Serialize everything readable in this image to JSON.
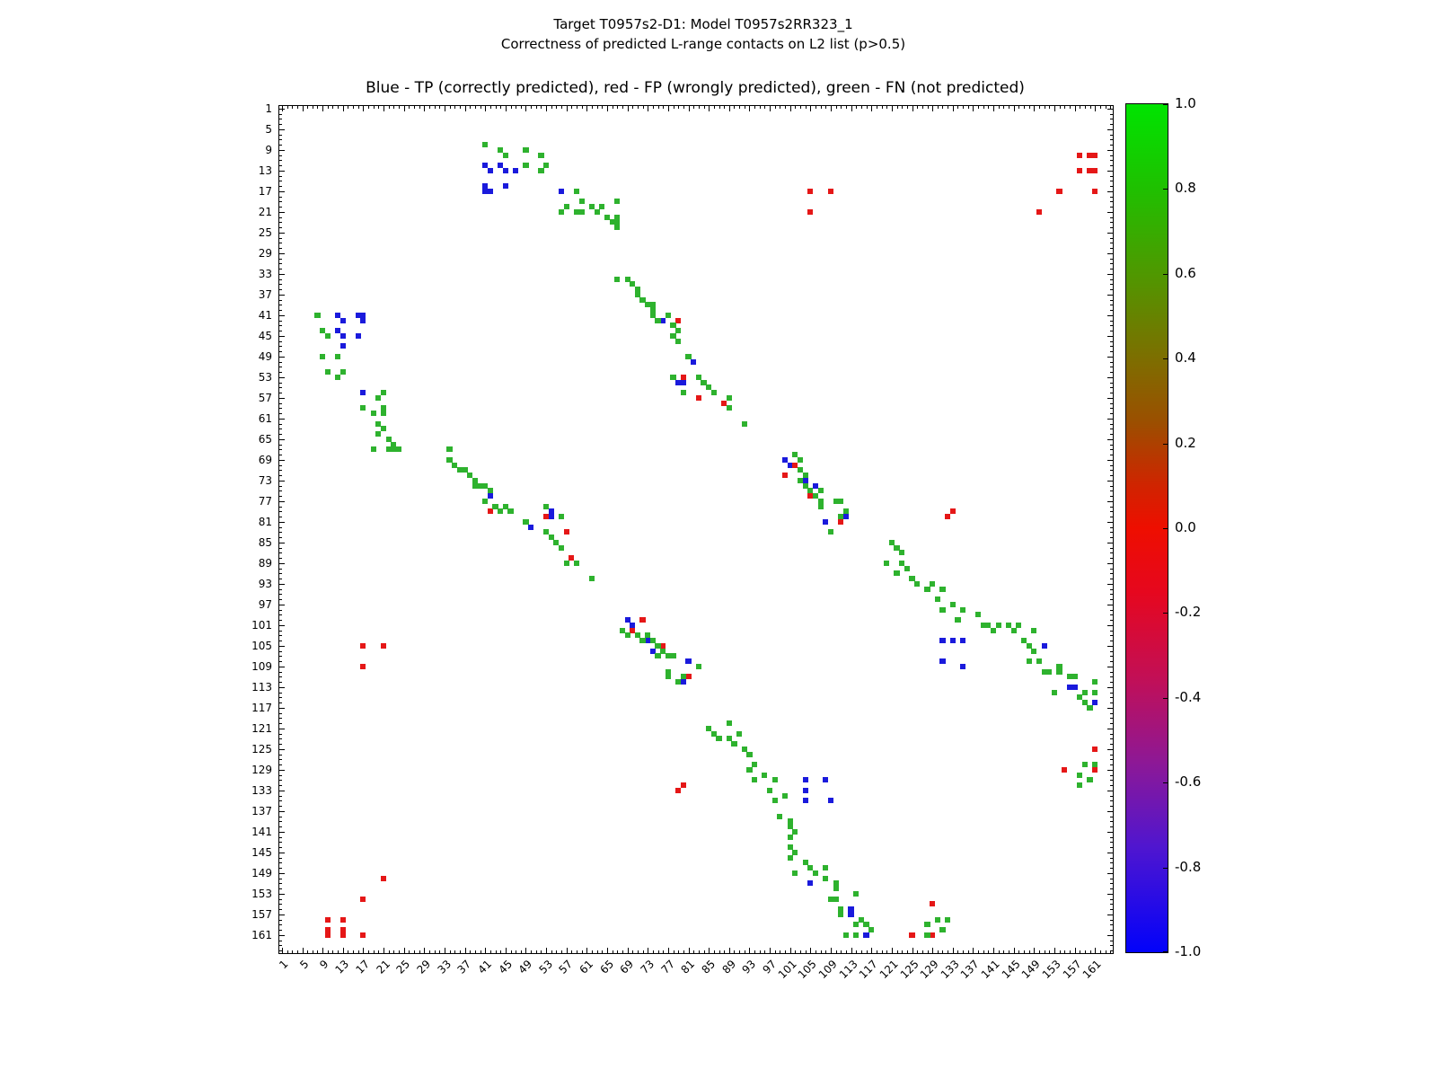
{
  "figure": {
    "suptitle_line1": "Target T0957s2-D1: Model T0957s2RR323_1",
    "suptitle_line2": "Correctness of predicted L-range contacts on L2 list (p>0.5)",
    "axes_title": "Blue - TP (correctly predicted), red - FP (wrongly predicted), green - FN (not predicted)"
  },
  "chart_data": {
    "type": "scatter",
    "title": "Blue - TP (correctly predicted), red - FP (wrongly predicted), green - FN (not predicted)",
    "xlabel": "",
    "ylabel": "",
    "n_residues": 164,
    "axis_range": [
      0.5,
      164.5
    ],
    "grid": false,
    "symmetric": true,
    "tick_labels": [
      1,
      5,
      9,
      13,
      17,
      21,
      25,
      29,
      33,
      37,
      41,
      45,
      49,
      53,
      57,
      61,
      65,
      69,
      73,
      77,
      81,
      85,
      89,
      93,
      97,
      101,
      105,
      109,
      113,
      117,
      121,
      125,
      129,
      133,
      137,
      141,
      145,
      149,
      153,
      157,
      161
    ],
    "legend": {
      "TP": "Blue - TP (correctly predicted)",
      "FP": "red - FP (wrongly predicted)",
      "FN": "green - FN (not predicted)"
    },
    "colors": {
      "TP": "#1a1adc",
      "FP": "#e51717",
      "FN": "#2eb22e"
    },
    "contacts": [
      [
        12,
        41,
        "TP"
      ],
      [
        13,
        42,
        "TP"
      ],
      [
        12,
        44,
        "TP"
      ],
      [
        13,
        45,
        "TP"
      ],
      [
        16,
        41,
        "TP"
      ],
      [
        17,
        41,
        "TP"
      ],
      [
        16,
        45,
        "TP"
      ],
      [
        17,
        42,
        "TP"
      ],
      [
        13,
        47,
        "TP"
      ],
      [
        17,
        56,
        "TP"
      ],
      [
        42,
        76,
        "TP"
      ],
      [
        50,
        82,
        "TP"
      ],
      [
        54,
        79,
        "TP"
      ],
      [
        54,
        80,
        "TP"
      ],
      [
        69,
        100,
        "TP"
      ],
      [
        70,
        101,
        "TP"
      ],
      [
        73,
        104,
        "TP"
      ],
      [
        74,
        106,
        "TP"
      ],
      [
        81,
        108,
        "TP"
      ],
      [
        80,
        112,
        "TP"
      ],
      [
        104,
        131,
        "TP"
      ],
      [
        104,
        133,
        "TP"
      ],
      [
        104,
        135,
        "TP"
      ],
      [
        108,
        131,
        "TP"
      ],
      [
        109,
        135,
        "TP"
      ],
      [
        105,
        151,
        "TP"
      ],
      [
        113,
        156,
        "TP"
      ],
      [
        113,
        157,
        "TP"
      ],
      [
        116,
        161,
        "TP"
      ],
      [
        17,
        105,
        "FP"
      ],
      [
        17,
        109,
        "FP"
      ],
      [
        21,
        105,
        "FP"
      ],
      [
        10,
        158,
        "FP"
      ],
      [
        10,
        160,
        "FP"
      ],
      [
        10,
        161,
        "FP"
      ],
      [
        13,
        158,
        "FP"
      ],
      [
        13,
        160,
        "FP"
      ],
      [
        13,
        161,
        "FP"
      ],
      [
        17,
        154,
        "FP"
      ],
      [
        17,
        161,
        "FP"
      ],
      [
        21,
        150,
        "FP"
      ],
      [
        42,
        79,
        "FP"
      ],
      [
        53,
        80,
        "FP"
      ],
      [
        57,
        83,
        "FP"
      ],
      [
        58,
        88,
        "FP"
      ],
      [
        70,
        102,
        "FP"
      ],
      [
        72,
        100,
        "FP"
      ],
      [
        76,
        105,
        "FP"
      ],
      [
        81,
        111,
        "FP"
      ],
      [
        79,
        133,
        "FP"
      ],
      [
        80,
        132,
        "FP"
      ],
      [
        125,
        161,
        "FP"
      ],
      [
        129,
        155,
        "FP"
      ],
      [
        129,
        161,
        "FP"
      ],
      [
        8,
        41,
        "FN"
      ],
      [
        9,
        44,
        "FN"
      ],
      [
        10,
        45,
        "FN"
      ],
      [
        9,
        49,
        "FN"
      ],
      [
        12,
        49,
        "FN"
      ],
      [
        10,
        52,
        "FN"
      ],
      [
        13,
        52,
        "FN"
      ],
      [
        12,
        53,
        "FN"
      ],
      [
        17,
        59,
        "FN"
      ],
      [
        19,
        60,
        "FN"
      ],
      [
        20,
        57,
        "FN"
      ],
      [
        21,
        56,
        "FN"
      ],
      [
        21,
        59,
        "FN"
      ],
      [
        21,
        60,
        "FN"
      ],
      [
        20,
        62,
        "FN"
      ],
      [
        21,
        63,
        "FN"
      ],
      [
        22,
        65,
        "FN"
      ],
      [
        23,
        66,
        "FN"
      ],
      [
        20,
        64,
        "FN"
      ],
      [
        19,
        67,
        "FN"
      ],
      [
        22,
        67,
        "FN"
      ],
      [
        23,
        67,
        "FN"
      ],
      [
        24,
        67,
        "FN"
      ],
      [
        34,
        67,
        "FN"
      ],
      [
        34,
        69,
        "FN"
      ],
      [
        35,
        70,
        "FN"
      ],
      [
        36,
        71,
        "FN"
      ],
      [
        37,
        71,
        "FN"
      ],
      [
        38,
        72,
        "FN"
      ],
      [
        39,
        73,
        "FN"
      ],
      [
        39,
        74,
        "FN"
      ],
      [
        40,
        74,
        "FN"
      ],
      [
        41,
        74,
        "FN"
      ],
      [
        42,
        75,
        "FN"
      ],
      [
        41,
        77,
        "FN"
      ],
      [
        43,
        78,
        "FN"
      ],
      [
        44,
        79,
        "FN"
      ],
      [
        45,
        78,
        "FN"
      ],
      [
        46,
        79,
        "FN"
      ],
      [
        49,
        81,
        "FN"
      ],
      [
        53,
        78,
        "FN"
      ],
      [
        56,
        80,
        "FN"
      ],
      [
        53,
        83,
        "FN"
      ],
      [
        54,
        84,
        "FN"
      ],
      [
        55,
        85,
        "FN"
      ],
      [
        56,
        86,
        "FN"
      ],
      [
        57,
        89,
        "FN"
      ],
      [
        59,
        89,
        "FN"
      ],
      [
        62,
        92,
        "FN"
      ],
      [
        68,
        102,
        "FN"
      ],
      [
        69,
        103,
        "FN"
      ],
      [
        71,
        103,
        "FN"
      ],
      [
        73,
        103,
        "FN"
      ],
      [
        72,
        104,
        "FN"
      ],
      [
        74,
        104,
        "FN"
      ],
      [
        75,
        105,
        "FN"
      ],
      [
        76,
        106,
        "FN"
      ],
      [
        75,
        107,
        "FN"
      ],
      [
        77,
        107,
        "FN"
      ],
      [
        78,
        107,
        "FN"
      ],
      [
        77,
        110,
        "FN"
      ],
      [
        77,
        111,
        "FN"
      ],
      [
        80,
        111,
        "FN"
      ],
      [
        79,
        112,
        "FN"
      ],
      [
        83,
        109,
        "FN"
      ],
      [
        85,
        121,
        "FN"
      ],
      [
        86,
        122,
        "FN"
      ],
      [
        87,
        123,
        "FN"
      ],
      [
        89,
        120,
        "FN"
      ],
      [
        89,
        123,
        "FN"
      ],
      [
        90,
        124,
        "FN"
      ],
      [
        91,
        122,
        "FN"
      ],
      [
        92,
        125,
        "FN"
      ],
      [
        93,
        126,
        "FN"
      ],
      [
        93,
        129,
        "FN"
      ],
      [
        94,
        128,
        "FN"
      ],
      [
        94,
        131,
        "FN"
      ],
      [
        96,
        130,
        "FN"
      ],
      [
        97,
        133,
        "FN"
      ],
      [
        98,
        131,
        "FN"
      ],
      [
        98,
        135,
        "FN"
      ],
      [
        100,
        134,
        "FN"
      ],
      [
        99,
        138,
        "FN"
      ],
      [
        101,
        139,
        "FN"
      ],
      [
        101,
        140,
        "FN"
      ],
      [
        102,
        141,
        "FN"
      ],
      [
        101,
        142,
        "FN"
      ],
      [
        101,
        144,
        "FN"
      ],
      [
        101,
        146,
        "FN"
      ],
      [
        102,
        145,
        "FN"
      ],
      [
        102,
        149,
        "FN"
      ],
      [
        104,
        147,
        "FN"
      ],
      [
        105,
        148,
        "FN"
      ],
      [
        106,
        149,
        "FN"
      ],
      [
        108,
        148,
        "FN"
      ],
      [
        108,
        150,
        "FN"
      ],
      [
        109,
        154,
        "FN"
      ],
      [
        110,
        151,
        "FN"
      ],
      [
        110,
        152,
        "FN"
      ],
      [
        110,
        154,
        "FN"
      ],
      [
        111,
        156,
        "FN"
      ],
      [
        111,
        157,
        "FN"
      ],
      [
        114,
        153,
        "FN"
      ],
      [
        114,
        159,
        "FN"
      ],
      [
        112,
        161,
        "FN"
      ],
      [
        114,
        161,
        "FN"
      ],
      [
        115,
        158,
        "FN"
      ],
      [
        116,
        159,
        "FN"
      ],
      [
        117,
        160,
        "FN"
      ],
      [
        128,
        159,
        "FN"
      ],
      [
        128,
        161,
        "FN"
      ],
      [
        130,
        158,
        "FN"
      ],
      [
        131,
        160,
        "FN"
      ],
      [
        132,
        158,
        "FN"
      ]
    ],
    "colorbar": {
      "ticks": [
        "1.0",
        "0.8",
        "0.6",
        "0.4",
        "0.2",
        "0.0",
        "-0.2",
        "-0.4",
        "-0.6",
        "-0.8",
        "-1.0"
      ],
      "range": [
        -1.0,
        1.0
      ],
      "gradient": [
        {
          "v": 1.0,
          "c": "#00e400"
        },
        {
          "v": 0.8,
          "c": "#1fc000"
        },
        {
          "v": 0.6,
          "c": "#4f9800"
        },
        {
          "v": 0.4,
          "c": "#7d6e00"
        },
        {
          "v": 0.25,
          "c": "#9b4f00"
        },
        {
          "v": 0.1,
          "c": "#d02400"
        },
        {
          "v": 0.0,
          "c": "#ee0e00"
        },
        {
          "v": -0.15,
          "c": "#e6071e"
        },
        {
          "v": -0.35,
          "c": "#c30f55"
        },
        {
          "v": -0.55,
          "c": "#8e1895"
        },
        {
          "v": -0.75,
          "c": "#5016cf"
        },
        {
          "v": -1.0,
          "c": "#0202fa"
        }
      ]
    }
  }
}
